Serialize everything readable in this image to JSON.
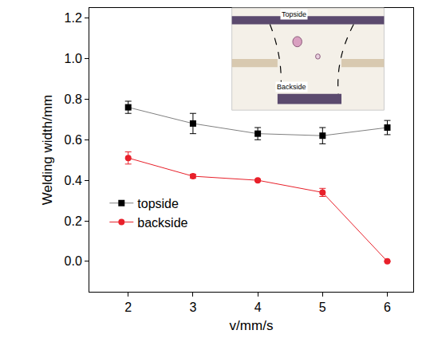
{
  "chart_data": {
    "type": "line",
    "x_label": "v/mm/s",
    "y_label": "Welding width/mm",
    "x": [
      2,
      3,
      4,
      5,
      6
    ],
    "series": [
      {
        "name": "topside",
        "color": "#000000",
        "marker": "square",
        "values": [
          0.76,
          0.68,
          0.63,
          0.62,
          0.66
        ],
        "errors": [
          0.03,
          0.05,
          0.03,
          0.04,
          0.035
        ]
      },
      {
        "name": "backside",
        "color": "#e8202a",
        "marker": "circle",
        "values": [
          0.51,
          0.42,
          0.4,
          0.34,
          0.0
        ],
        "errors": [
          0.03,
          0.01,
          0.005,
          0.02,
          0.0
        ]
      }
    ],
    "xlim": [
      1.4,
      6.4
    ],
    "xticks": [
      2,
      3,
      4,
      5,
      6
    ],
    "ylim": [
      -0.15,
      1.25
    ],
    "yticks": [
      {
        "value": 0,
        "label": "0.0"
      },
      0.2,
      0.4,
      0.6,
      0.8,
      {
        "value": 1,
        "label": "1.0"
      },
      1.2
    ],
    "grid": false,
    "legend": "lower left",
    "annotations": [
      "Topside",
      "Backside"
    ]
  }
}
